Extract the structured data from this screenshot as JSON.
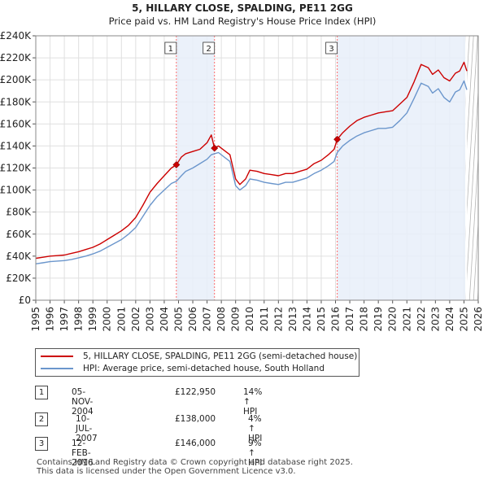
{
  "chart_data": {
    "type": "line",
    "title": "5, HILLARY CLOSE, SPALDING, PE11 2GG",
    "subtitle": "Price paid vs. HM Land Registry's House Price Index (HPI)",
    "xlim": [
      1995,
      2026
    ],
    "ylim": [
      0,
      240000
    ],
    "y_ticks": [
      0,
      20000,
      40000,
      60000,
      80000,
      100000,
      120000,
      140000,
      160000,
      180000,
      200000,
      220000,
      240000
    ],
    "y_tick_labels": [
      "£0",
      "£20K",
      "£40K",
      "£60K",
      "£80K",
      "£100K",
      "£120K",
      "£140K",
      "£160K",
      "£180K",
      "£200K",
      "£220K",
      "£240K"
    ],
    "x_ticks": [
      1995,
      1996,
      1997,
      1998,
      1999,
      2000,
      2001,
      2002,
      2003,
      2004,
      2005,
      2006,
      2007,
      2008,
      2009,
      2010,
      2011,
      2012,
      2013,
      2014,
      2015,
      2016,
      2017,
      2018,
      2019,
      2020,
      2021,
      2022,
      2023,
      2024,
      2025,
      2026
    ],
    "x_tick_labels": [
      "1995",
      "1996",
      "1997",
      "1998",
      "1999",
      "2000",
      "2001",
      "2002",
      "2003",
      "2004",
      "2005",
      "2006",
      "2007",
      "2008",
      "2009",
      "2010",
      "2011",
      "2012",
      "2013",
      "2014",
      "2015",
      "2016",
      "2017",
      "2018",
      "2019",
      "2020",
      "2021",
      "2022",
      "2023",
      "2024",
      "2025",
      "2026"
    ],
    "grid": true,
    "series": [
      {
        "name": "5, HILLARY CLOSE, SPALDING, PE11 2GG (semi-detached house)",
        "color": "#cc0000",
        "x": [
          1995.0,
          1995.5,
          1996.0,
          1996.5,
          1997.0,
          1997.5,
          1998.0,
          1998.5,
          1999.0,
          1999.5,
          2000.0,
          2000.5,
          2001.0,
          2001.5,
          2002.0,
          2002.5,
          2003.0,
          2003.5,
          2004.0,
          2004.5,
          2004.85,
          2005.2,
          2005.5,
          2006.0,
          2006.5,
          2007.0,
          2007.3,
          2007.52,
          2007.8,
          2008.2,
          2008.6,
          2009.0,
          2009.3,
          2009.7,
          2010.0,
          2010.5,
          2011.0,
          2011.5,
          2012.0,
          2012.5,
          2013.0,
          2013.5,
          2014.0,
          2014.5,
          2015.0,
          2015.5,
          2015.9,
          2016.12,
          2016.5,
          2017.0,
          2017.5,
          2018.0,
          2018.5,
          2019.0,
          2019.5,
          2020.0,
          2020.5,
          2021.0,
          2021.5,
          2022.0,
          2022.5,
          2022.8,
          2023.2,
          2023.6,
          2024.0,
          2024.4,
          2024.7,
          2025.0,
          2025.2
        ],
        "y": [
          38000,
          39000,
          40000,
          40500,
          41000,
          42500,
          44000,
          46000,
          48000,
          51000,
          55000,
          59000,
          63000,
          68000,
          75000,
          86000,
          98000,
          106000,
          113000,
          120000,
          122950,
          130000,
          133000,
          135000,
          137000,
          143000,
          150000,
          138000,
          140000,
          136000,
          132000,
          110000,
          105000,
          110000,
          118000,
          117000,
          115000,
          114000,
          113000,
          115000,
          115000,
          117000,
          119000,
          124000,
          127000,
          132000,
          137000,
          146000,
          152000,
          158000,
          163000,
          166000,
          168000,
          170000,
          171000,
          172000,
          178000,
          184000,
          198000,
          214000,
          211000,
          205000,
          209000,
          202000,
          199000,
          206000,
          208000,
          216000,
          208000
        ]
      },
      {
        "name": "HPI: Average price, semi-detached house, South Holland",
        "color": "#6b96cc",
        "x": [
          1995.0,
          1995.5,
          1996.0,
          1996.5,
          1997.0,
          1997.5,
          1998.0,
          1998.5,
          1999.0,
          1999.5,
          2000.0,
          2000.5,
          2001.0,
          2001.5,
          2002.0,
          2002.5,
          2003.0,
          2003.5,
          2004.0,
          2004.5,
          2004.85,
          2005.2,
          2005.5,
          2006.0,
          2006.5,
          2007.0,
          2007.3,
          2007.52,
          2007.8,
          2008.2,
          2008.6,
          2009.0,
          2009.3,
          2009.7,
          2010.0,
          2010.5,
          2011.0,
          2011.5,
          2012.0,
          2012.5,
          2013.0,
          2013.5,
          2014.0,
          2014.5,
          2015.0,
          2015.5,
          2015.9,
          2016.12,
          2016.5,
          2017.0,
          2017.5,
          2018.0,
          2018.5,
          2019.0,
          2019.5,
          2020.0,
          2020.5,
          2021.0,
          2021.5,
          2022.0,
          2022.5,
          2022.8,
          2023.2,
          2023.6,
          2024.0,
          2024.4,
          2024.7,
          2025.0,
          2025.2
        ],
        "y": [
          33000,
          34000,
          35000,
          35500,
          36000,
          37000,
          38500,
          40000,
          42000,
          44500,
          48000,
          51500,
          55000,
          60000,
          66000,
          76000,
          86000,
          94000,
          100000,
          106000,
          108000,
          113000,
          117000,
          120000,
          124000,
          128000,
          132000,
          133000,
          134000,
          130000,
          126000,
          104000,
          100000,
          104000,
          110000,
          109000,
          107000,
          106000,
          105000,
          107000,
          107000,
          109000,
          111000,
          115000,
          118000,
          122000,
          126000,
          134000,
          140000,
          145000,
          149000,
          152000,
          154000,
          156000,
          156000,
          157000,
          163000,
          170000,
          183000,
          197000,
          194000,
          188000,
          192000,
          184000,
          180000,
          189000,
          191000,
          199000,
          191000
        ]
      }
    ],
    "sales": [
      {
        "num": "1",
        "x": 2004.85,
        "price": 122950,
        "date": "05-NOV-2004",
        "price_label": "£122,950",
        "delta": "14% ↑ HPI"
      },
      {
        "num": "2",
        "x": 2007.52,
        "price": 138000,
        "date": "10-JUL-2007",
        "price_label": "£138,000",
        "delta": "4% ↑ HPI"
      },
      {
        "num": "3",
        "x": 2016.12,
        "price": 146000,
        "date": "12-FEB-2016",
        "price_label": "£146,000",
        "delta": "9% ↑ HPI"
      }
    ],
    "shaded_periods": [
      [
        2004.85,
        2007.52
      ],
      [
        2016.12,
        2025.1
      ]
    ],
    "hatched_from": 2025.1,
    "colors": {
      "sale_line": "#cc0000",
      "hpi_line": "#6b96cc",
      "shade": "#e8eef9",
      "grid": "#e0e0e0",
      "marker": "#cc0000",
      "vline": "#ff6b6b"
    }
  },
  "legend": {
    "property_label": "5, HILLARY CLOSE, SPALDING, PE11 2GG (semi-detached house)",
    "hpi_label": "HPI: Average price, semi-detached house, South Holland"
  },
  "footer": {
    "line1": "Contains HM Land Registry data © Crown copyright and database right 2025.",
    "line2": "This data is licensed under the Open Government Licence v3.0."
  }
}
